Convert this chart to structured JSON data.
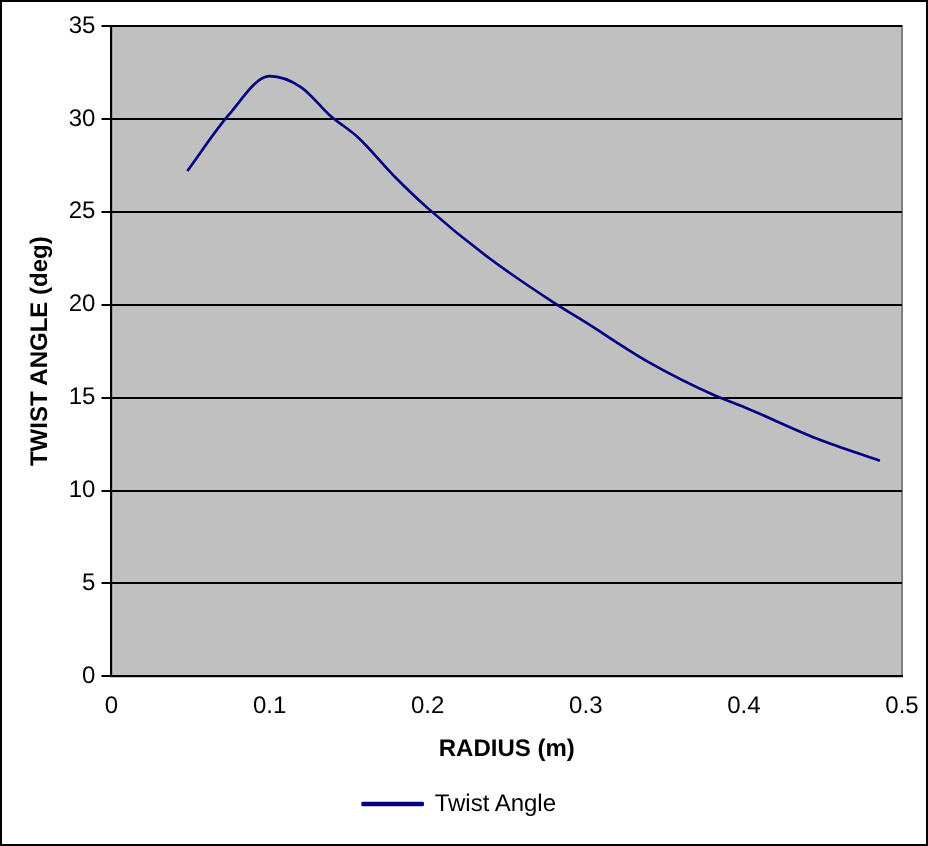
{
  "chart_data": {
    "type": "line",
    "xlabel": "RADIUS (m)",
    "ylabel": "TWIST ANGLE (deg)",
    "x": [
      0.048,
      0.074,
      0.1,
      0.12,
      0.138,
      0.156,
      0.179,
      0.2,
      0.239,
      0.28,
      0.299,
      0.34,
      0.382,
      0.4,
      0.446,
      0.486
    ],
    "series": [
      {
        "name": "Twist Angle",
        "color": "#000080",
        "values": [
          27.2,
          30.2,
          32.3,
          31.7,
          30.2,
          29.0,
          26.9,
          25.2,
          22.5,
          20.1,
          19.1,
          16.9,
          15.1,
          14.5,
          12.8,
          11.6
        ]
      }
    ],
    "xlim": [
      0,
      0.5
    ],
    "xticks": [
      0,
      0.1,
      0.2,
      0.3,
      0.4,
      0.5
    ],
    "ylim": [
      0,
      35
    ],
    "yticks": [
      0,
      5,
      10,
      15,
      20,
      25,
      30,
      35
    ],
    "grid": "y",
    "legend": "bottom",
    "marker": "none",
    "line_style": "solid"
  }
}
